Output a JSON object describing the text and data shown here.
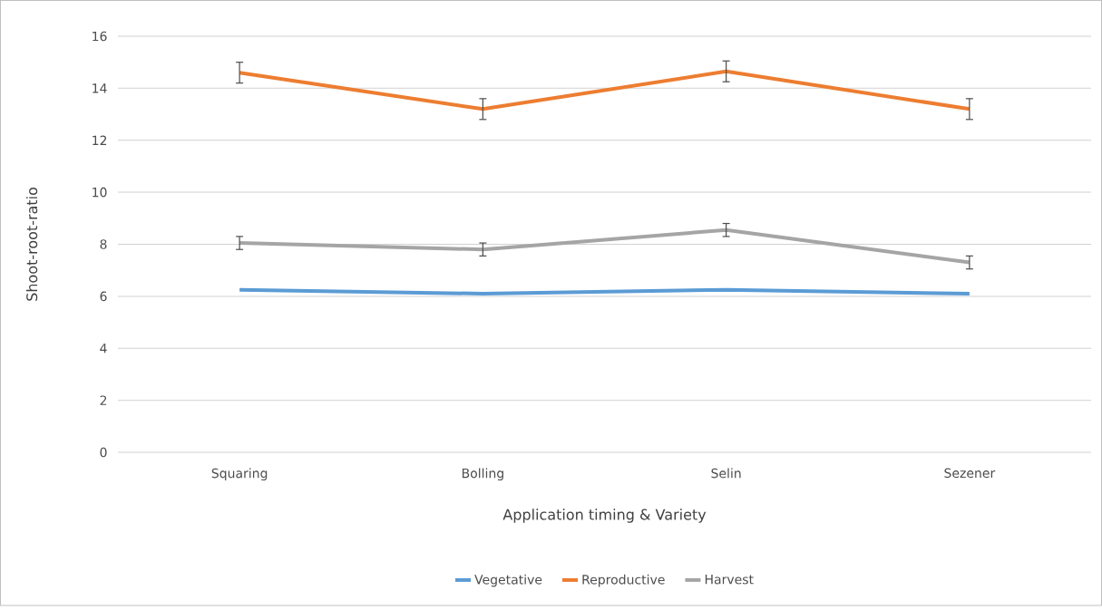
{
  "chart_data": {
    "type": "line",
    "xlabel": "Application timing & Variety",
    "ylabel": "Shoot-root-ratio",
    "categories": [
      "Squaring",
      "Bolling",
      "Selin",
      "Sezener"
    ],
    "series": [
      {
        "name": "Vegetative",
        "color": "#5b9bd5",
        "values": [
          6.25,
          6.1,
          6.25,
          6.1
        ]
      },
      {
        "name": "Reproductive",
        "color": "#ed7d31",
        "values": [
          14.6,
          13.2,
          14.65,
          13.2
        ],
        "errors": [
          0.4,
          0.4,
          0.4,
          0.4
        ]
      },
      {
        "name": "Harvest",
        "color": "#a5a5a5",
        "values": [
          8.05,
          7.8,
          8.55,
          7.3
        ],
        "errors": [
          0.25,
          0.25,
          0.25,
          0.25
        ]
      }
    ],
    "ylim": [
      0,
      16
    ],
    "yticks": [
      0,
      2,
      4,
      6,
      8,
      10,
      12,
      14,
      16
    ],
    "grid": "y",
    "legend": "bottom",
    "marker": "none",
    "line_style": "solid"
  }
}
